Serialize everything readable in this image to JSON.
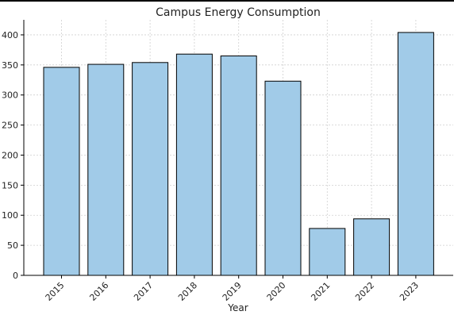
{
  "chart_data": {
    "type": "bar",
    "title": "Campus Energy Consumption",
    "xlabel": "Year",
    "ylabel": "",
    "categories": [
      "2015",
      "2016",
      "2017",
      "2018",
      "2019",
      "2020",
      "2021",
      "2022",
      "2023"
    ],
    "values": [
      346,
      351,
      354,
      368,
      365,
      323,
      78,
      94,
      404
    ],
    "ylim": [
      0,
      425
    ],
    "yticks": [
      0,
      50,
      100,
      150,
      200,
      250,
      300,
      350,
      400
    ],
    "grid": true,
    "bar_color": "#a1cbe8",
    "bar_edge_color": "#000000",
    "grid_color": "#cfcfcf"
  }
}
